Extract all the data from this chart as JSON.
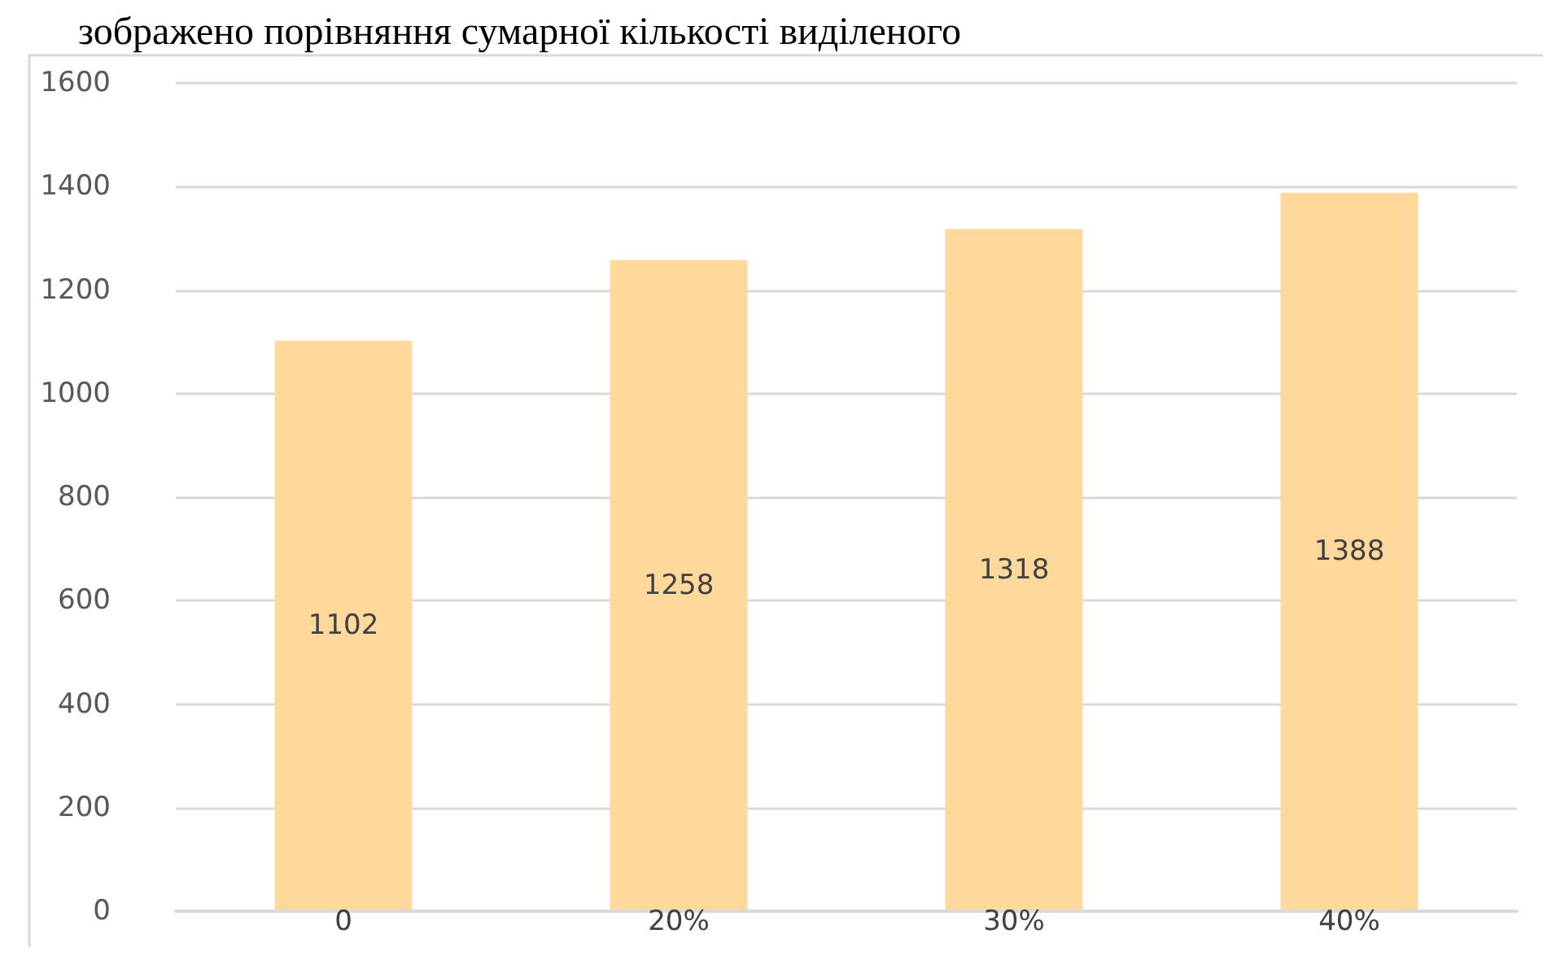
{
  "chart_data": {
    "type": "bar",
    "annotations": [
      "зображено порівняння сумарної кількості виділеного"
    ],
    "categories": [
      "0",
      "20%",
      "30%",
      "40%"
    ],
    "values": [
      1102,
      1258,
      1318,
      1388
    ],
    "color": "#ffd89b",
    "data_labels": true,
    "ylim": [
      0,
      1600
    ],
    "yticks": [
      0,
      200,
      400,
      600,
      800,
      1000,
      1200,
      1400,
      1600
    ],
    "grid": "y"
  }
}
